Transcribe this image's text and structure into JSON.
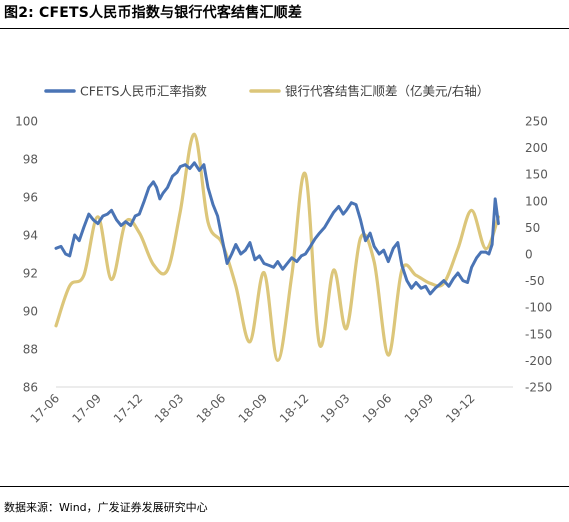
{
  "figure": {
    "title": "图2:  CFETS人民币指数与银行代客结售汇顺差",
    "source": "数据来源：Wind，广发证券发展研究中心"
  },
  "chart_data": {
    "type": "line",
    "title": "",
    "x_ticks": [
      "17-06",
      "17-09",
      "17-12",
      "18-03",
      "18-06",
      "18-09",
      "18-12",
      "19-03",
      "19-06",
      "19-09",
      "19-12"
    ],
    "x_range": [
      "2017-06",
      "2020-03"
    ],
    "y_left": {
      "ticks": [
        86,
        88,
        90,
        92,
        94,
        96,
        98,
        100
      ],
      "range": [
        86,
        100
      ]
    },
    "y_right": {
      "ticks": [
        -250,
        -200,
        -150,
        -100,
        -50,
        0,
        50,
        100,
        150,
        200,
        250
      ],
      "range": [
        -250,
        250
      ]
    },
    "grid": false,
    "legend_position": "top",
    "series": [
      {
        "name": "CFETS人民币汇率指数",
        "axis": "left",
        "color": "#4a74b5",
        "x": [
          "2017-06-01",
          "2017-06-12",
          "2017-06-22",
          "2017-07-01",
          "2017-07-12",
          "2017-07-22",
          "2017-08-01",
          "2017-08-12",
          "2017-08-22",
          "2017-09-01",
          "2017-09-12",
          "2017-09-22",
          "2017-10-01",
          "2017-10-12",
          "2017-10-22",
          "2017-11-01",
          "2017-11-12",
          "2017-11-22",
          "2017-12-01",
          "2017-12-12",
          "2017-12-22",
          "2018-01-01",
          "2018-01-08",
          "2018-01-15",
          "2018-01-22",
          "2018-02-01",
          "2018-02-12",
          "2018-02-22",
          "2018-03-01",
          "2018-03-12",
          "2018-03-22",
          "2018-04-01",
          "2018-04-12",
          "2018-04-22",
          "2018-05-01",
          "2018-05-12",
          "2018-05-22",
          "2018-06-01",
          "2018-06-12",
          "2018-06-22",
          "2018-07-01",
          "2018-07-12",
          "2018-07-22",
          "2018-08-01",
          "2018-08-12",
          "2018-08-22",
          "2018-09-01",
          "2018-09-12",
          "2018-09-22",
          "2018-10-01",
          "2018-10-12",
          "2018-10-22",
          "2018-11-01",
          "2018-11-12",
          "2018-11-22",
          "2018-12-01",
          "2018-12-12",
          "2018-12-22",
          "2019-01-01",
          "2019-01-12",
          "2019-01-22",
          "2019-02-01",
          "2019-02-12",
          "2019-02-22",
          "2019-03-01",
          "2019-03-12",
          "2019-03-22",
          "2019-04-01",
          "2019-04-12",
          "2019-04-22",
          "2019-05-01",
          "2019-05-12",
          "2019-05-22",
          "2019-06-01",
          "2019-06-12",
          "2019-06-22",
          "2019-07-01",
          "2019-07-12",
          "2019-07-22",
          "2019-08-01",
          "2019-08-12",
          "2019-08-22",
          "2019-09-01",
          "2019-09-12",
          "2019-09-22",
          "2019-10-01",
          "2019-10-12",
          "2019-10-22",
          "2019-11-01",
          "2019-11-12",
          "2019-11-22",
          "2019-12-01",
          "2019-12-12",
          "2019-12-22",
          "2020-01-01",
          "2020-01-08",
          "2020-01-15",
          "2020-01-22",
          "2020-01-29"
        ],
        "y": [
          93.3,
          93.4,
          93.0,
          92.9,
          94.0,
          93.7,
          94.4,
          95.1,
          94.8,
          94.6,
          95.0,
          95.1,
          95.3,
          94.8,
          94.5,
          94.7,
          94.5,
          95.0,
          95.1,
          95.8,
          96.5,
          96.8,
          96.5,
          95.9,
          96.2,
          96.5,
          97.1,
          97.3,
          97.6,
          97.7,
          97.5,
          97.8,
          97.4,
          97.7,
          96.5,
          95.6,
          95.0,
          93.8,
          92.5,
          93.0,
          93.5,
          93.0,
          93.2,
          93.6,
          92.7,
          92.9,
          92.5,
          92.4,
          92.3,
          92.6,
          92.2,
          92.5,
          92.8,
          92.6,
          92.9,
          93.0,
          93.4,
          93.8,
          94.1,
          94.4,
          94.8,
          95.2,
          95.5,
          95.1,
          95.3,
          95.7,
          95.6,
          94.8,
          93.7,
          94.1,
          93.4,
          93.0,
          93.2,
          92.6,
          93.3,
          93.6,
          92.4,
          91.6,
          91.2,
          91.5,
          91.2,
          91.3,
          90.9,
          91.2,
          91.4,
          91.6,
          91.3,
          91.7,
          92.0,
          91.6,
          91.5,
          92.3,
          92.8,
          93.1,
          93.1,
          93.0,
          93.5,
          95.9,
          94.6
        ]
      },
      {
        "name": "银行代客结售汇顺差（亿美元/右轴）",
        "axis": "right",
        "color": "#dcc67a",
        "x": [
          "2017-06-01",
          "2017-07-01",
          "2017-08-01",
          "2017-09-01",
          "2017-10-01",
          "2017-11-01",
          "2017-12-01",
          "2018-01-01",
          "2018-02-01",
          "2018-03-01",
          "2018-04-01",
          "2018-05-01",
          "2018-06-01",
          "2018-07-01",
          "2018-08-01",
          "2018-09-01",
          "2018-10-01",
          "2018-11-01",
          "2018-12-01",
          "2019-01-01",
          "2019-02-01",
          "2019-03-01",
          "2019-04-01",
          "2019-05-01",
          "2019-06-01",
          "2019-07-01",
          "2019-08-01",
          "2019-09-01",
          "2019-10-01",
          "2019-11-01",
          "2019-12-01",
          "2020-01-01",
          "2020-01-29"
        ],
        "y": [
          -135,
          -60,
          -40,
          70,
          -48,
          60,
          40,
          -20,
          -30,
          80,
          225,
          60,
          20,
          -60,
          -165,
          -35,
          -200,
          -40,
          150,
          -170,
          -30,
          -140,
          30,
          -15,
          -190,
          -30,
          -40,
          -55,
          -55,
          10,
          82,
          10,
          70
        ]
      }
    ]
  }
}
